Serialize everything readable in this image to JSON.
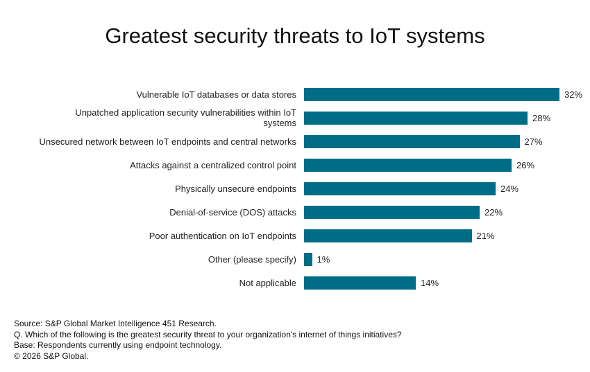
{
  "chart_data": {
    "type": "bar",
    "orientation": "horizontal",
    "title": "Greatest security threats to IoT systems",
    "categories": [
      "Vulnerable IoT databases or data stores",
      "Unpatched application security vulnerabilities within IoT systems",
      "Unsecured network between IoT endpoints and central networks",
      "Attacks against a centralized control point",
      "Physically unsecure endpoints",
      "Denial-of-service (DOS) attacks",
      "Poor authentication on IoT endpoints",
      "Other (please specify)",
      "Not applicable"
    ],
    "values": [
      32,
      28,
      27,
      26,
      24,
      22,
      21,
      1,
      14
    ],
    "value_labels": [
      "32%",
      "28%",
      "27%",
      "26%",
      "24%",
      "22%",
      "21%",
      "1%",
      "14%"
    ],
    "unit": "%",
    "xlim": [
      0,
      32
    ],
    "grid": false,
    "color": "#006d86"
  },
  "footer": {
    "source": "Source: S&P Global Market Intelligence 451 Research.",
    "question": "Q. Which of the following is the greatest security threat to your organization's internet of things initiatives?",
    "base": "Base: Respondents currently using endpoint technology.",
    "copyright": "© 2026 S&P Global."
  }
}
